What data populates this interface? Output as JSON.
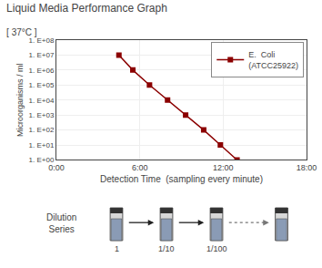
{
  "chart_data": {
    "type": "line",
    "title": "Liquid Media Performance Graph",
    "subtitle": "[ 37°C ]",
    "x_label": "Detection Time  (sampling every minute)",
    "y_label": "Microorganisms / ml",
    "x": [
      4.5,
      5.5,
      6.7,
      8.0,
      9.3,
      10.6,
      11.8,
      13.0
    ],
    "series": [
      {
        "name": "E.  Coli\n(ATCC25922)",
        "color": "#8B0000",
        "marker": "square",
        "values": [
          10000000,
          1000000,
          100000,
          10000,
          1000,
          100,
          10,
          1
        ]
      }
    ],
    "xlim": [
      0,
      18
    ],
    "xticks": [
      {
        "value": 0,
        "label": "0:00"
      },
      {
        "value": 6,
        "label": "6:00"
      },
      {
        "value": 12,
        "label": "12:00"
      },
      {
        "value": 18,
        "label": "18:00"
      }
    ],
    "ylim": [
      1,
      100000000
    ],
    "yticks": [
      {
        "value": 1,
        "label": "1. E+00"
      },
      {
        "value": 10,
        "label": "1. E+01"
      },
      {
        "value": 100,
        "label": "1. E+02"
      },
      {
        "value": 1000,
        "label": "1. E+03"
      },
      {
        "value": 10000,
        "label": "1. E+04"
      },
      {
        "value": 100000,
        "label": "1. E+05"
      },
      {
        "value": 1000000,
        "label": "1. E+06"
      },
      {
        "value": 10000000,
        "label": "1. E+07"
      },
      {
        "value": 100000000,
        "label": "1. E+08"
      }
    ],
    "log": "y",
    "grid": true,
    "legend": "upper right",
    "annotations": [
      "Dilution\nSeries",
      "1",
      "1/10",
      "1/100"
    ]
  }
}
